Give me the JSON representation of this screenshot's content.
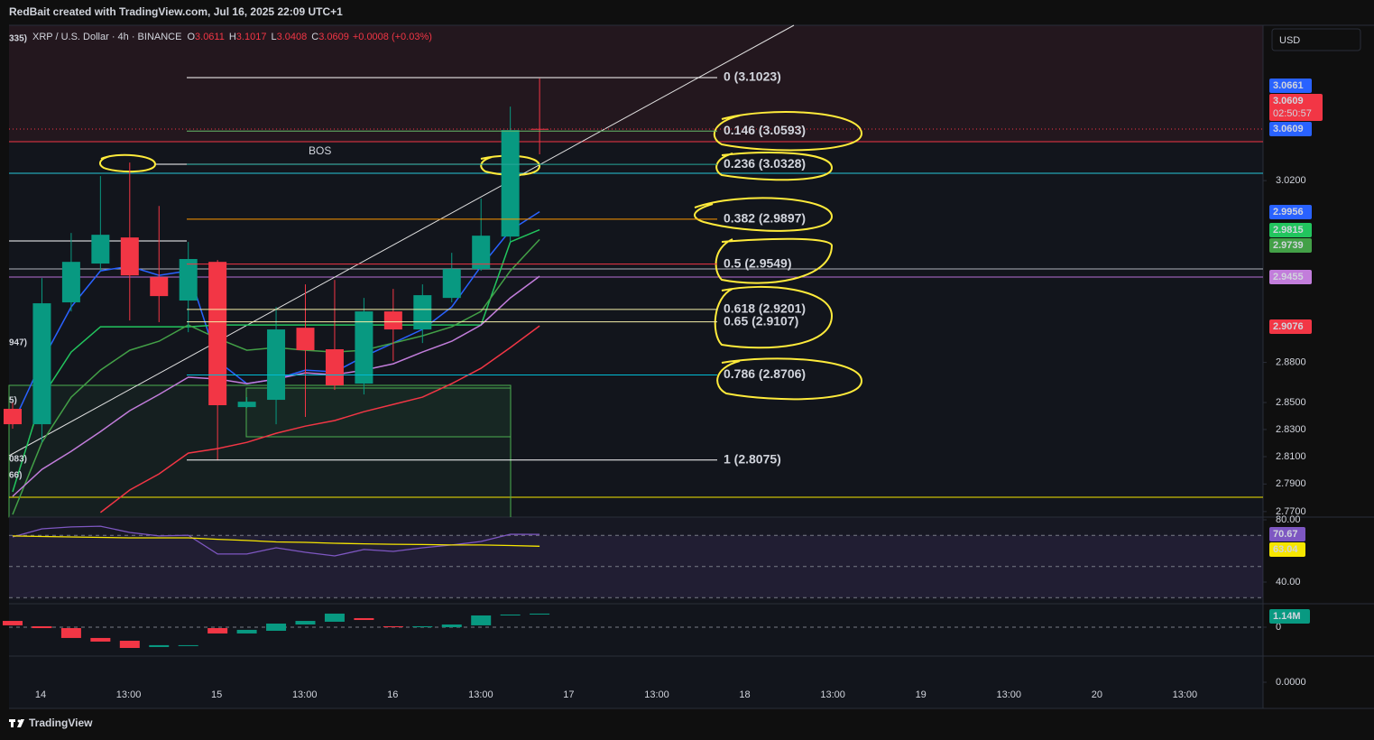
{
  "header": {
    "credit": "RedBait created with TradingView.com, Jul 16, 2025 22:09 UTC+1"
  },
  "footer": {
    "brand": "TradingView"
  },
  "chart_data": [
    {
      "type": "candlestick",
      "title": "XRP / U.S. Dollar · 4h · BINANCE",
      "ohlc_letters": [
        "O",
        "H",
        "L",
        "C"
      ],
      "change": "+0.0008 (+0.03%)",
      "currency": "USD",
      "countdown": "02:50:57",
      "open": [
        2.8453,
        2.8339,
        2.9255,
        2.9553,
        2.9755,
        2.9448,
        2.9269,
        2.9566,
        2.8466,
        2.852,
        2.9062,
        2.8899,
        2.8641,
        2.9186,
        2.9049,
        2.9289,
        2.9511,
        2.9762,
        3.0611
      ],
      "high": [
        2.8506,
        2.9441,
        2.979,
        3.0236,
        3.0343,
        3.0001,
        2.972,
        2.958,
        2.854,
        2.922,
        2.9393,
        2.9427,
        2.9289,
        2.9358,
        2.9393,
        2.9636,
        3.0058,
        3.0789,
        3.1017
      ],
      "low": [
        2.8306,
        2.8205,
        2.9186,
        2.9497,
        2.9117,
        2.9104,
        2.9028,
        2.8073,
        2.846,
        2.8339,
        2.8393,
        2.8594,
        2.856,
        2.881,
        2.8946,
        2.9255,
        2.9497,
        2.972,
        3.0408
      ],
      "close": [
        2.8339,
        2.9248,
        2.9566,
        2.9776,
        2.9462,
        2.9303,
        2.9588,
        2.848,
        2.8506,
        2.9049,
        2.8892,
        2.8628,
        2.9186,
        2.9049,
        2.931,
        2.9511,
        2.9769,
        3.0601,
        3.0609
      ],
      "up_color": "#089981",
      "down_color": "#f23645",
      "moving_averages": [
        {
          "color": "#2962ff",
          "values": [
            2.8339,
            2.881,
            2.922,
            2.9497,
            2.9532,
            2.9462,
            2.9497,
            2.881,
            2.8641,
            2.8675,
            2.8742,
            2.8729,
            2.8844,
            2.8946,
            2.9049,
            2.922,
            2.9532,
            2.9811,
            2.9956
          ]
        },
        {
          "color": "#22c55e",
          "values": [
            2.7843,
            2.854,
            2.8878,
            2.9069,
            2.9069,
            2.9069,
            2.9069,
            2.9083,
            2.9083,
            2.9083,
            2.9083,
            2.9083,
            2.9083,
            2.9083,
            2.9083,
            2.9083,
            2.9083,
            2.972,
            2.9815
          ]
        },
        {
          "color": "#43a047",
          "values": [
            2.7679,
            2.8205,
            2.854,
            2.8742,
            2.8892,
            2.896,
            2.9083,
            2.8981,
            2.8892,
            2.8912,
            2.8892,
            2.8878,
            2.8892,
            2.8946,
            2.9001,
            2.9069,
            2.9186,
            2.9497,
            2.9739
          ]
        },
        {
          "color": "#c27ddb",
          "values": [
            2.781,
            2.8007,
            2.8139,
            2.8285,
            2.8439,
            2.856,
            2.8689,
            2.8675,
            2.8641,
            2.8675,
            2.8722,
            2.8708,
            2.8742,
            2.879,
            2.8878,
            2.896,
            2.9083,
            2.9289,
            2.9455
          ]
        },
        {
          "color": "#f23645",
          "values": [
            null,
            null,
            null,
            2.7693,
            2.7856,
            2.7974,
            2.8126,
            2.8159,
            2.8205,
            2.8272,
            2.8325,
            2.8366,
            2.8432,
            2.8486,
            2.854,
            2.8641,
            2.8756,
            2.8912,
            2.9076
          ]
        }
      ],
      "price_tags": [
        {
          "value": 3.0661,
          "color": "#2962ff"
        }
      ],
      "last_price_tag_colors": [
        "#f23645",
        "#2962ff"
      ],
      "fib_levels": [
        {
          "label": "0 (3.1023)",
          "value": 3.1023,
          "color": "#ffffff"
        },
        {
          "label": "0.146 (3.0593)",
          "value": 3.0593,
          "color": "#66bb6a"
        },
        {
          "label": "0.236 (3.0328)",
          "value": 3.0328,
          "color": "#26a69a"
        },
        {
          "label": "0.382 (2.9897)",
          "value": 2.9897,
          "color": "#ff9800"
        },
        {
          "label": "0.5 (2.9549)",
          "value": 2.9549,
          "color": "#f23645"
        },
        {
          "label": "0.618 (2.9201)",
          "value": 2.9201,
          "color": "#f5f0a8"
        },
        {
          "label": "0.65 (2.9107)",
          "value": 2.9107,
          "color": "#f5f0a8"
        },
        {
          "label": "0.786 (2.8706)",
          "value": 2.8706,
          "color": "#00bcd4"
        },
        {
          "label": "1 (2.8075)",
          "value": 2.8075,
          "color": "#ffffff"
        }
      ],
      "annotation": "BOS",
      "edge_labels": [
        {
          "text": "335)",
          "color": "#ff9800"
        },
        {
          "text": "947)",
          "color": "#ff9800"
        },
        {
          "text": "5)",
          "color": "#f23645"
        },
        {
          "text": "083)",
          "color": "#ffeb3b"
        },
        {
          "text": "66)",
          "color": "#ffeb3b"
        }
      ],
      "ylim": [
        2.766,
        3.145
      ],
      "log_scale": true,
      "grid": false,
      "yticks": [
        {
          "value": 3.02,
          "label": "3.0200"
        },
        {
          "value": 2.88,
          "label": "2.8800"
        },
        {
          "value": 2.85,
          "label": "2.8500"
        },
        {
          "value": 2.83,
          "label": "2.8300"
        },
        {
          "value": 2.81,
          "label": "2.8100"
        },
        {
          "value": 2.79,
          "label": "2.7900"
        },
        {
          "value": 2.77,
          "label": "2.7700"
        }
      ],
      "x_labels": [
        "14",
        "13:00",
        "15",
        "13:00",
        "16",
        "13:00",
        "17",
        "13:00",
        "18",
        "13:00",
        "19",
        "13:00",
        "20",
        "13:00"
      ]
    },
    {
      "type": "line",
      "series": [
        {
          "color": "#7e57c2",
          "values": [
            69.0,
            74.2,
            75.4,
            75.9,
            71.9,
            69.6,
            70.1,
            58.0,
            58.0,
            62.0,
            59.1,
            56.8,
            60.9,
            59.7,
            62.0,
            63.8,
            66.1,
            70.7,
            70.67
          ]
        },
        {
          "color": "#f7e600",
          "values": [
            69.6,
            69.3,
            69.0,
            68.7,
            68.4,
            68.4,
            68.4,
            67.5,
            66.7,
            65.8,
            65.5,
            64.9,
            64.6,
            64.3,
            64.1,
            63.8,
            63.8,
            63.5,
            63.04
          ]
        }
      ],
      "dashed_levels": [
        70,
        50,
        30
      ],
      "ylim": [
        28.4,
        81.74
      ],
      "yticks": [
        {
          "value": 80,
          "label": "80.00"
        },
        {
          "value": 40,
          "label": "40.00"
        }
      ]
    },
    {
      "type": "floating_bar",
      "low": [
        0.18,
        -0.09,
        -1.05,
        -1.4,
        -2.02,
        -1.93,
        -1.84,
        -0.61,
        -0.61,
        -0.35,
        0.26,
        0.53,
        0.7,
        0,
        0,
        0,
        0.18,
        1.14,
        1.23
      ],
      "high": [
        0.61,
        0.09,
        -0.09,
        -1.05,
        -1.32,
        -1.75,
        -1.75,
        -0.09,
        -0.26,
        0.35,
        0.61,
        1.32,
        0.88,
        0.09,
        0.09,
        0.26,
        1.14,
        1.23,
        1.32
      ],
      "colors": [
        "#f23645",
        "#f23645",
        "#f23645",
        "#f23645",
        "#f23645",
        "#089981",
        "#089981",
        "#f23645",
        "#089981",
        "#089981",
        "#089981",
        "#089981",
        "#f23645",
        "#f23645",
        "#089981",
        "#089981",
        "#089981",
        "#089981",
        "#089981"
      ],
      "value_tag": {
        "value": 1.14,
        "label": "1.14M"
      },
      "value_tag_color": "#089981",
      "ylim": [
        -2.81,
        1.93
      ],
      "yticks": [
        0
      ]
    },
    {
      "type": "empty",
      "ylim": [
        -1,
        1
      ],
      "yticks": [
        {
          "value": 0,
          "label": "0.0000"
        }
      ]
    }
  ]
}
